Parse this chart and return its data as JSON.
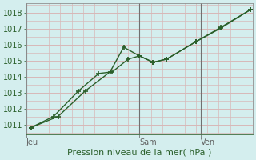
{
  "title": "",
  "xlabel": "Pression niveau de la mer( hPa )",
  "background_color": "#d4eeee",
  "grid_color": "#d8b8b8",
  "line_color": "#2a5f2a",
  "axis_color": "#3a6b3a",
  "ylim": [
    1010.4,
    1018.6
  ],
  "yticks": [
    1011,
    1012,
    1013,
    1014,
    1015,
    1016,
    1017,
    1018
  ],
  "xlim": [
    0,
    1
  ],
  "day_labels": [
    "Jeu",
    "Sam",
    "Ven"
  ],
  "day_positions": [
    0.0,
    0.5,
    0.77
  ],
  "vline_positions": [
    0.0,
    0.5,
    0.77
  ],
  "line1_x": [
    0.02,
    0.12,
    0.23,
    0.32,
    0.38,
    0.45,
    0.5,
    0.56,
    0.62,
    0.75,
    0.86,
    0.99
  ],
  "line1_y": [
    1010.8,
    1011.5,
    1013.1,
    1014.2,
    1014.3,
    1015.1,
    1015.3,
    1014.9,
    1015.1,
    1016.2,
    1017.05,
    1018.2
  ],
  "line2_x": [
    0.02,
    0.14,
    0.26,
    0.37,
    0.43,
    0.5,
    0.56,
    0.62,
    0.75,
    0.86,
    0.99
  ],
  "line2_y": [
    1010.8,
    1011.5,
    1013.1,
    1014.3,
    1015.85,
    1015.3,
    1014.9,
    1015.1,
    1016.2,
    1017.1,
    1018.2
  ],
  "xlabel_fontsize": 8,
  "ylabel_fontsize": 7,
  "xtick_fontsize": 7,
  "ytick_fontsize": 7
}
